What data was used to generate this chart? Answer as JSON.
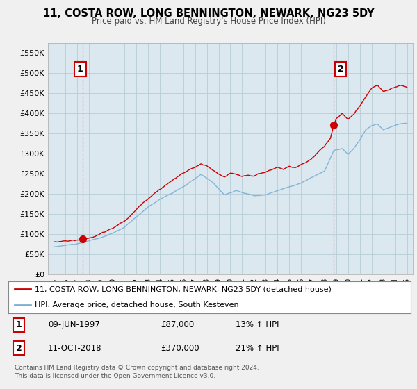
{
  "title": "11, COSTA ROW, LONG BENNINGTON, NEWARK, NG23 5DY",
  "subtitle": "Price paid vs. HM Land Registry's House Price Index (HPI)",
  "xlim": [
    1994.5,
    2025.5
  ],
  "ylim": [
    0,
    575000
  ],
  "yticks": [
    0,
    50000,
    100000,
    150000,
    200000,
    250000,
    300000,
    350000,
    400000,
    450000,
    500000,
    550000
  ],
  "ytick_labels": [
    "£0",
    "£50K",
    "£100K",
    "£150K",
    "£200K",
    "£250K",
    "£300K",
    "£350K",
    "£400K",
    "£450K",
    "£500K",
    "£550K"
  ],
  "xticks": [
    1995,
    1996,
    1997,
    1998,
    1999,
    2000,
    2001,
    2002,
    2003,
    2004,
    2005,
    2006,
    2007,
    2008,
    2009,
    2010,
    2011,
    2012,
    2013,
    2014,
    2015,
    2016,
    2017,
    2018,
    2019,
    2020,
    2021,
    2022,
    2023,
    2024,
    2025
  ],
  "sale1_x": 1997.44,
  "sale1_y": 87000,
  "sale1_label": "1",
  "sale2_x": 2018.78,
  "sale2_y": 370000,
  "sale2_label": "2",
  "legend_line1": "11, COSTA ROW, LONG BENNINGTON, NEWARK, NG23 5DY (detached house)",
  "legend_line2": "HPI: Average price, detached house, South Kesteven",
  "annotation1_date": "09-JUN-1997",
  "annotation1_price": "£87,000",
  "annotation1_hpi": "13% ↑ HPI",
  "annotation2_date": "11-OCT-2018",
  "annotation2_price": "£370,000",
  "annotation2_hpi": "21% ↑ HPI",
  "footer": "Contains HM Land Registry data © Crown copyright and database right 2024.\nThis data is licensed under the Open Government Licence v3.0.",
  "line_color_red": "#cc0000",
  "line_color_blue": "#7bafd4",
  "background_color": "#f0f0f0",
  "plot_bg_color": "#dce8f0",
  "grid_color": "#b8cdd8",
  "vline_color": "#cc0000",
  "title_fontsize": 11,
  "subtitle_fontsize": 9
}
